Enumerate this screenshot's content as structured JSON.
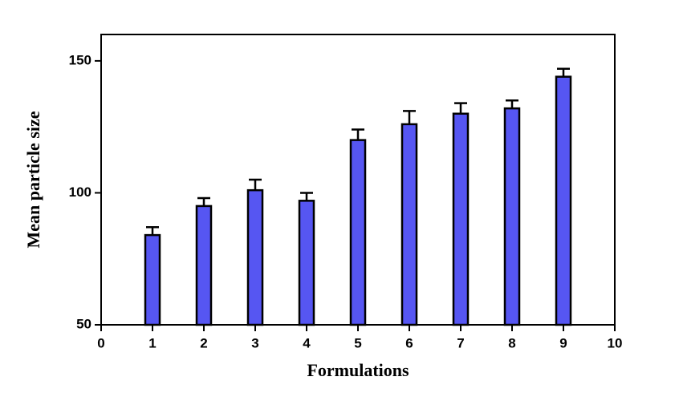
{
  "chart_data": {
    "type": "bar",
    "x_label": "Formulations",
    "y_label": "Mean particle size",
    "x": [
      1,
      2,
      3,
      4,
      5,
      6,
      7,
      8,
      9
    ],
    "values": [
      84,
      95,
      101,
      97,
      120,
      126,
      130,
      132,
      144
    ],
    "errors": [
      3,
      3,
      4,
      3,
      4,
      5,
      4,
      3,
      3
    ],
    "color": "#5656f2",
    "xlim": [
      0,
      10
    ],
    "xticks": [
      0,
      1,
      2,
      3,
      4,
      5,
      6,
      7,
      8,
      9,
      10
    ],
    "ylim": [
      50,
      160
    ],
    "yticks": [
      50,
      100,
      150
    ]
  }
}
